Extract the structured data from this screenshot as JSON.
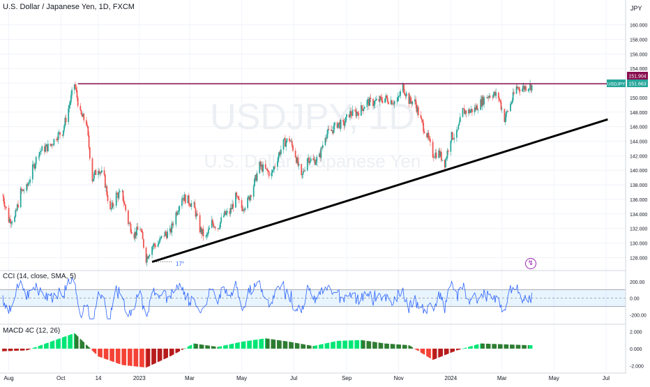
{
  "header": {
    "title": "U.S. Dollar / Japanese Yen, 1D, FXCM",
    "currency": "JPY"
  },
  "watermark": {
    "symbol": "USDJPY, 1D",
    "name": "U.S. Dollar / Japanese Yen"
  },
  "price_badges": {
    "resistance": "151.904",
    "symbol_label": "USDJPY",
    "last": "151.663"
  },
  "annotation": {
    "angle": "17°"
  },
  "indicators": {
    "cci_label": "CCI (14, close, SMA, 5)",
    "macd_label": "MACD 4C (12, 26)"
  },
  "colors": {
    "up": "#26a69a",
    "down": "#ef5350",
    "cci_line": "#2962ff",
    "resistance": "#880e4f",
    "trendline": "#000000",
    "macd_pos": "#00e676",
    "macd_neg": "#f44336"
  },
  "chart_data": [
    {
      "type": "candlestick",
      "title": "U.S. Dollar / Japanese Yen, 1D, FXCM",
      "x_tick_labels": [
        "Aug",
        "Oct",
        "14",
        "2023",
        "Mar",
        "May",
        "Jul",
        "Sep",
        "Nov",
        "2024",
        "Mar",
        "May",
        "Jul"
      ],
      "y_tick_labels": [
        "160.000",
        "158.000",
        "156.000",
        "154.000",
        "152.000",
        "150.000",
        "148.000",
        "146.000",
        "144.000",
        "142.000",
        "140.000",
        "138.000",
        "136.000",
        "134.000",
        "132.000",
        "130.000",
        "128.000"
      ],
      "ylim": [
        126.5,
        161.5
      ],
      "series": [
        {
          "name": "USDJPY",
          "close_points": [
            [
              "2022-07-25",
              136.5
            ],
            [
              "2022-08-01",
              133.2
            ],
            [
              "2022-08-08",
              133.4
            ],
            [
              "2022-08-15",
              137.0
            ],
            [
              "2022-08-22",
              137.5
            ],
            [
              "2022-08-29",
              140.2
            ],
            [
              "2022-09-05",
              142.5
            ],
            [
              "2022-09-12",
              143.0
            ],
            [
              "2022-09-19",
              143.4
            ],
            [
              "2022-09-26",
              144.7
            ],
            [
              "2022-10-03",
              145.3
            ],
            [
              "2022-10-10",
              148.5
            ],
            [
              "2022-10-17",
              151.9
            ],
            [
              "2022-10-24",
              147.6
            ],
            [
              "2022-10-31",
              146.6
            ],
            [
              "2022-11-07",
              138.8
            ],
            [
              "2022-11-14",
              140.4
            ],
            [
              "2022-11-21",
              138.8
            ],
            [
              "2022-11-28",
              134.3
            ],
            [
              "2022-12-05",
              136.6
            ],
            [
              "2022-12-12",
              136.7
            ],
            [
              "2022-12-19",
              132.9
            ],
            [
              "2022-12-26",
              131.2
            ],
            [
              "2023-01-02",
              132.1
            ],
            [
              "2023-01-09",
              127.9
            ],
            [
              "2023-01-16",
              129.6
            ],
            [
              "2023-01-23",
              129.9
            ],
            [
              "2023-01-30",
              131.2
            ],
            [
              "2023-02-06",
              131.4
            ],
            [
              "2023-02-13",
              134.1
            ],
            [
              "2023-02-20",
              136.4
            ],
            [
              "2023-02-27",
              135.9
            ],
            [
              "2023-03-06",
              135.0
            ],
            [
              "2023-03-13",
              131.9
            ],
            [
              "2023-03-20",
              130.6
            ],
            [
              "2023-03-27",
              132.8
            ],
            [
              "2023-04-03",
              132.2
            ],
            [
              "2023-04-10",
              133.8
            ],
            [
              "2023-04-17",
              134.2
            ],
            [
              "2023-04-24",
              136.3
            ],
            [
              "2023-05-01",
              134.8
            ],
            [
              "2023-05-08",
              135.7
            ],
            [
              "2023-05-15",
              138.0
            ],
            [
              "2023-05-22",
              140.6
            ],
            [
              "2023-05-29",
              140.0
            ],
            [
              "2023-06-05",
              139.4
            ],
            [
              "2023-06-12",
              141.8
            ],
            [
              "2023-06-19",
              143.7
            ],
            [
              "2023-06-26",
              144.3
            ],
            [
              "2023-07-03",
              142.1
            ],
            [
              "2023-07-10",
              138.8
            ],
            [
              "2023-07-17",
              141.8
            ],
            [
              "2023-07-24",
              141.2
            ],
            [
              "2023-07-31",
              141.8
            ],
            [
              "2023-08-07",
              144.9
            ],
            [
              "2023-08-14",
              145.4
            ],
            [
              "2023-08-21",
              146.4
            ],
            [
              "2023-08-28",
              146.2
            ],
            [
              "2023-09-04",
              147.8
            ],
            [
              "2023-09-11",
              147.8
            ],
            [
              "2023-09-18",
              148.4
            ],
            [
              "2023-09-25",
              149.4
            ],
            [
              "2023-10-02",
              149.3
            ],
            [
              "2023-10-09",
              149.6
            ],
            [
              "2023-10-16",
              149.9
            ],
            [
              "2023-10-23",
              149.6
            ],
            [
              "2023-10-30",
              149.4
            ],
            [
              "2023-11-06",
              151.5
            ],
            [
              "2023-11-13",
              149.6
            ],
            [
              "2023-11-20",
              149.4
            ],
            [
              "2023-11-27",
              146.8
            ],
            [
              "2023-12-04",
              144.9
            ],
            [
              "2023-12-11",
              142.2
            ],
            [
              "2023-12-18",
              142.4
            ],
            [
              "2023-12-25",
              141.0
            ],
            [
              "2024-01-01",
              144.6
            ],
            [
              "2024-01-08",
              144.9
            ],
            [
              "2024-01-15",
              148.1
            ],
            [
              "2024-01-22",
              148.1
            ],
            [
              "2024-01-29",
              148.4
            ],
            [
              "2024-02-05",
              149.3
            ],
            [
              "2024-02-12",
              150.2
            ],
            [
              "2024-02-19",
              150.5
            ],
            [
              "2024-02-26",
              150.1
            ],
            [
              "2024-03-04",
              147.1
            ],
            [
              "2024-03-11",
              149.1
            ],
            [
              "2024-03-18",
              151.4
            ],
            [
              "2024-03-25",
              151.3
            ],
            [
              "2024-04-01",
              151.6
            ]
          ]
        }
      ],
      "lines": {
        "resistance": {
          "price": 151.904,
          "from": "2022-10-21"
        },
        "trendline": {
          "from": [
            "2023-01-16",
            127.4
          ],
          "to": [
            "2024-07-03",
            147.0
          ]
        }
      }
    },
    {
      "type": "line",
      "title": "CCI (14, close, SMA, 5)",
      "y_tick_labels": [
        "200.00",
        "0.00",
        "-200.00"
      ],
      "ylim": [
        -290,
        300
      ],
      "band": [
        100,
        -100
      ],
      "approx_range": [
        -250,
        250
      ]
    },
    {
      "type": "bar",
      "title": "MACD 4C (12, 26)",
      "y_tick_labels": [
        "2.000",
        "0.000",
        "-2.000"
      ],
      "ylim": [
        -2.6,
        2.6
      ],
      "x": [
        "2022-07-25",
        "2022-08-22",
        "2022-09-19",
        "2022-10-17",
        "2022-11-14",
        "2022-12-12",
        "2023-01-09",
        "2023-02-06",
        "2023-03-06",
        "2023-04-03",
        "2023-05-01",
        "2023-05-29",
        "2023-06-26",
        "2023-07-24",
        "2023-08-21",
        "2023-09-18",
        "2023-10-16",
        "2023-11-13",
        "2023-12-11",
        "2024-01-08",
        "2024-02-05",
        "2024-03-04",
        "2024-04-01"
      ],
      "values": [
        -0.3,
        -0.2,
        0.8,
        1.8,
        -0.9,
        -1.9,
        -2.2,
        -0.9,
        0.6,
        0.2,
        0.8,
        1.2,
        0.8,
        0.3,
        0.9,
        1.0,
        0.6,
        0.4,
        -1.3,
        -0.2,
        0.6,
        0.5,
        0.4
      ]
    }
  ]
}
